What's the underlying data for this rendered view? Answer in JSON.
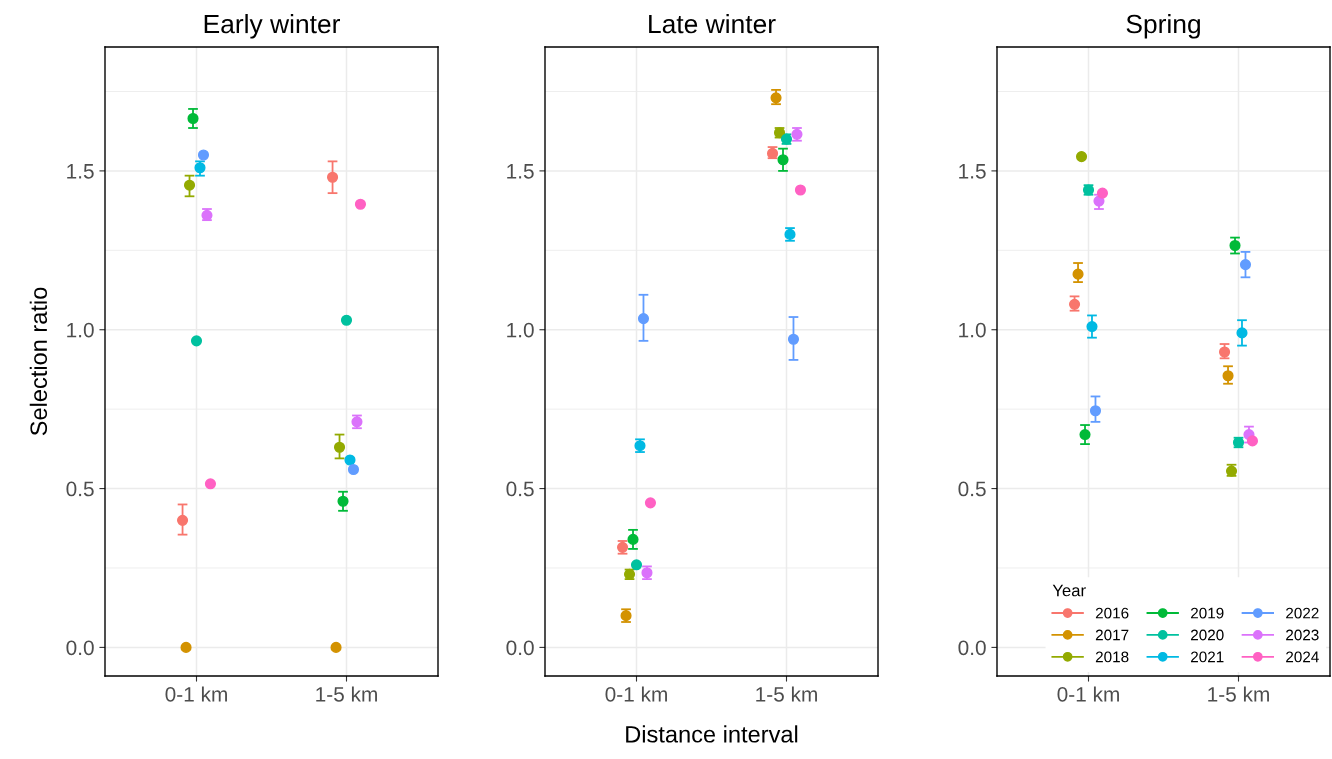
{
  "chart_data": [
    {
      "type": "scatter",
      "title": "Early winter",
      "ylabel": "Selection ratio",
      "categories": [
        "0-1 km",
        "1-5 km"
      ],
      "ylim": [
        -0.09,
        1.89
      ],
      "yticks": [
        {
          "value": 0,
          "label": "0.0"
        },
        {
          "value": 0.5,
          "label": "0.5"
        },
        {
          "value": 1,
          "label": "1.0"
        },
        {
          "value": 1.5,
          "label": "1.5"
        }
      ],
      "grid": true,
      "marker": "circle",
      "series": [
        {
          "color": "#f8766d",
          "values": [
            0.4,
            1.48
          ],
          "errors": [
            [
              0.355,
              0.45
            ],
            [
              1.43,
              1.53
            ]
          ]
        },
        {
          "color": "#d39200",
          "values": [
            0.0,
            0.0
          ],
          "errors": [
            null,
            null
          ]
        },
        {
          "color": "#93aa00",
          "values": [
            1.455,
            0.63
          ],
          "errors": [
            [
              1.42,
              1.485
            ],
            [
              0.595,
              0.67
            ]
          ]
        },
        {
          "color": "#00ba38",
          "values": [
            1.665,
            0.46
          ],
          "errors": [
            [
              1.635,
              1.695
            ],
            [
              0.43,
              0.49
            ]
          ]
        },
        {
          "color": "#00c19f",
          "values": [
            0.965,
            1.03
          ],
          "errors": [
            null,
            null
          ]
        },
        {
          "color": "#00b9e3",
          "values": [
            1.51,
            0.59
          ],
          "errors": [
            [
              1.485,
              1.53
            ],
            null
          ]
        },
        {
          "color": "#619cff",
          "values": [
            1.55,
            0.56
          ],
          "errors": [
            null,
            null
          ]
        },
        {
          "color": "#db72fb",
          "values": [
            1.36,
            0.71
          ],
          "errors": [
            [
              1.345,
              1.38
            ],
            [
              0.69,
              0.73
            ]
          ]
        },
        {
          "color": "#ff61c3",
          "values": [
            0.515,
            1.395
          ],
          "errors": [
            null,
            null
          ]
        }
      ]
    },
    {
      "type": "scatter",
      "title": "Late winter",
      "xlabel": "Distance interval",
      "categories": [
        "0-1 km",
        "1-5 km"
      ],
      "ylim": [
        -0.09,
        1.89
      ],
      "yticks": [
        {
          "value": 0,
          "label": "0.0"
        },
        {
          "value": 0.5,
          "label": "0.5"
        },
        {
          "value": 1,
          "label": "1.0"
        },
        {
          "value": 1.5,
          "label": "1.5"
        }
      ],
      "grid": true,
      "marker": "circle",
      "series": [
        {
          "color": "#f8766d",
          "values": [
            0.315,
            1.555
          ],
          "errors": [
            [
              0.295,
              0.335
            ],
            [
              1.54,
              1.575
            ]
          ]
        },
        {
          "color": "#d39200",
          "values": [
            0.1,
            1.73
          ],
          "errors": [
            [
              0.08,
              0.12
            ],
            [
              1.71,
              1.755
            ]
          ]
        },
        {
          "color": "#93aa00",
          "values": [
            0.23,
            1.62
          ],
          "errors": [
            [
              0.215,
              0.245
            ],
            [
              1.605,
              1.635
            ]
          ]
        },
        {
          "color": "#00ba38",
          "values": [
            0.34,
            1.535
          ],
          "errors": [
            [
              0.31,
              0.37
            ],
            [
              1.5,
              1.57
            ]
          ]
        },
        {
          "color": "#00c19f",
          "values": [
            0.26,
            1.6
          ],
          "errors": [
            null,
            [
              1.585,
              1.615
            ]
          ]
        },
        {
          "color": "#00b9e3",
          "values": [
            0.635,
            1.3
          ],
          "errors": [
            [
              0.615,
              0.655
            ],
            [
              1.28,
              1.32
            ]
          ]
        },
        {
          "color": "#619cff",
          "values": [
            1.035,
            0.97
          ],
          "errors": [
            [
              0.965,
              1.11
            ],
            [
              0.905,
              1.04
            ]
          ]
        },
        {
          "color": "#db72fb",
          "values": [
            0.235,
            1.615
          ],
          "errors": [
            [
              0.215,
              0.255
            ],
            [
              1.595,
              1.635
            ]
          ]
        },
        {
          "color": "#ff61c3",
          "values": [
            0.455,
            1.44
          ],
          "errors": [
            null,
            null
          ]
        }
      ]
    },
    {
      "type": "scatter",
      "title": "Spring",
      "categories": [
        "0-1 km",
        "1-5 km"
      ],
      "ylim": [
        -0.09,
        1.89
      ],
      "yticks": [
        {
          "value": 0,
          "label": "0.0"
        },
        {
          "value": 0.5,
          "label": "0.5"
        },
        {
          "value": 1,
          "label": "1.0"
        },
        {
          "value": 1.5,
          "label": "1.5"
        }
      ],
      "grid": true,
      "marker": "circle",
      "legend": "bottom right",
      "legend_title": "Year",
      "series": [
        {
          "name": "2016",
          "color": "#f8766d",
          "values": [
            1.08,
            0.93
          ],
          "errors": [
            [
              1.06,
              1.105
            ],
            [
              0.91,
              0.955
            ]
          ]
        },
        {
          "name": "2017",
          "color": "#d39200",
          "values": [
            1.175,
            0.855
          ],
          "errors": [
            [
              1.15,
              1.21
            ],
            [
              0.83,
              0.885
            ]
          ]
        },
        {
          "name": "2018",
          "color": "#93aa00",
          "values": [
            1.545,
            0.555
          ],
          "errors": [
            null,
            [
              0.54,
              0.575
            ]
          ]
        },
        {
          "name": "2019",
          "color": "#00ba38",
          "values": [
            0.67,
            1.265
          ],
          "errors": [
            [
              0.64,
              0.7
            ],
            [
              1.24,
              1.29
            ]
          ]
        },
        {
          "name": "2020",
          "color": "#00c19f",
          "values": [
            1.44,
            0.645
          ],
          "errors": [
            [
              1.425,
              1.455
            ],
            [
              0.63,
              0.66
            ]
          ]
        },
        {
          "name": "2021",
          "color": "#00b9e3",
          "values": [
            1.01,
            0.99
          ],
          "errors": [
            [
              0.975,
              1.045
            ],
            [
              0.95,
              1.03
            ]
          ]
        },
        {
          "name": "2022",
          "color": "#619cff",
          "values": [
            0.745,
            1.205
          ],
          "errors": [
            [
              0.71,
              0.79
            ],
            [
              1.165,
              1.245
            ]
          ]
        },
        {
          "name": "2023",
          "color": "#db72fb",
          "values": [
            1.405,
            0.67
          ],
          "errors": [
            [
              1.38,
              1.425
            ],
            [
              0.645,
              0.695
            ]
          ]
        },
        {
          "name": "2024",
          "color": "#ff61c3",
          "values": [
            1.43,
            0.65
          ],
          "errors": [
            null,
            null
          ]
        }
      ]
    }
  ]
}
